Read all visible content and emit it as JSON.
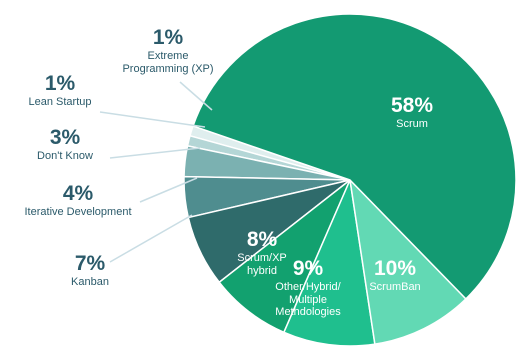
{
  "chart_data": {
    "type": "pie",
    "categories": [
      "Scrum",
      "ScrumBan",
      "Other/Hybrid/\nMultiple\nMethdologies",
      "Scrum/XP\nhybrid",
      "Kanban",
      "Iterative Development",
      "Don't Know",
      "Lean Startup",
      "Extreme\nProgramming (XP)"
    ],
    "values": [
      58,
      10,
      9,
      8,
      7,
      4,
      3,
      1,
      1
    ],
    "value_labels": [
      "58%",
      "10%",
      "9%",
      "8%",
      "7%",
      "4%",
      "3%",
      "1%",
      "1%"
    ],
    "colors": [
      "#139a72",
      "#62d9b4",
      "#1fbf8e",
      "#12a16f",
      "#2f6b6b",
      "#4f8d8f",
      "#7bb1b1",
      "#b4d6d6",
      "#dfeeee"
    ]
  }
}
